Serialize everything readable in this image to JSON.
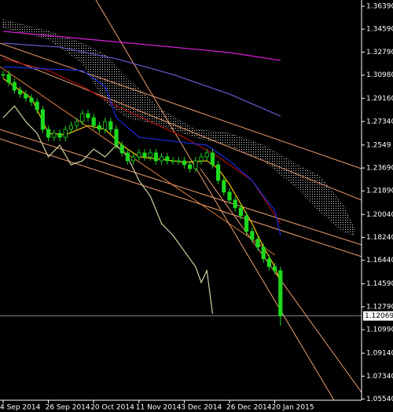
{
  "chart_data": {
    "type": "candlestick",
    "categories": [
      "4 Sep 2014",
      null,
      null,
      null,
      null,
      null,
      null,
      null,
      "26 Sep 2014",
      null,
      null,
      null,
      null,
      null,
      null,
      null,
      "20 Oct 2014",
      null,
      null,
      null,
      null,
      null,
      null,
      null,
      "11 Nov 2014",
      null,
      null,
      null,
      null,
      null,
      null,
      null,
      "3 Dec 2014",
      null,
      null,
      null,
      null,
      null,
      null,
      null,
      "26 Dec 2014",
      null,
      null,
      null,
      null,
      null,
      null,
      null,
      "20 Jan 2015",
      null
    ],
    "close": [
      1.3103,
      1.3041,
      1.298,
      1.2949,
      1.2918,
      1.2887,
      1.2826,
      1.2672,
      1.261,
      1.2641,
      1.261,
      1.2672,
      1.2702,
      1.2733,
      1.2795,
      1.2764,
      1.2702,
      1.2672,
      1.2733,
      1.2672,
      1.2548,
      1.2487,
      1.2425,
      1.2456,
      1.2487,
      1.2456,
      1.2487,
      1.2425,
      1.2456,
      1.2425,
      1.2425,
      1.2425,
      1.2394,
      1.2364,
      1.2425,
      1.2456,
      1.2487,
      1.2394,
      1.2271,
      1.2179,
      1.2117,
      1.2056,
      1.1994,
      1.1871,
      1.1809,
      1.1748,
      1.1655,
      1.1594,
      1.1563,
      1.1207
    ],
    "high": [
      1.3133,
      1.3133,
      1.3071,
      1.301,
      1.2979,
      1.2948,
      1.2917,
      1.2856,
      1.2702,
      1.2671,
      1.2671,
      1.2702,
      1.2732,
      1.2763,
      1.2825,
      1.2825,
      1.2794,
      1.2732,
      1.2763,
      1.2763,
      1.2702,
      1.2578,
      1.2517,
      1.2486,
      1.2517,
      1.2517,
      1.2517,
      1.2517,
      1.2486,
      1.2486,
      1.2455,
      1.2455,
      1.2455,
      1.2424,
      1.2455,
      1.2486,
      1.2517,
      1.2517,
      1.2424,
      1.2301,
      1.2209,
      1.2147,
      1.2086,
      1.2024,
      1.1901,
      1.1839,
      1.1778,
      1.1685,
      1.1624,
      1.1593
    ],
    "low": [
      1.3073,
      1.3011,
      1.295,
      1.2919,
      1.2888,
      1.2857,
      1.2796,
      1.2642,
      1.258,
      1.258,
      1.258,
      1.258,
      1.2642,
      1.2672,
      1.2703,
      1.2734,
      1.2672,
      1.2642,
      1.2642,
      1.2642,
      1.2518,
      1.2457,
      1.2395,
      1.2395,
      1.2426,
      1.2426,
      1.2426,
      1.2395,
      1.2395,
      1.2395,
      1.2395,
      1.2395,
      1.2364,
      1.2334,
      1.2334,
      1.2395,
      1.2426,
      1.2364,
      1.2241,
      1.2149,
      1.2087,
      1.2026,
      1.1964,
      1.1841,
      1.1779,
      1.1718,
      1.1625,
      1.1564,
      1.1533,
      1.113
    ],
    "candle_color": "#1ed81e",
    "cloud": {
      "color": "#d8d8d8",
      "upper": {
        "x": [
          0,
          8,
          14,
          18,
          22,
          28,
          34,
          40,
          46,
          52,
          56,
          60,
          62
        ],
        "values": [
          1.3534,
          1.3442,
          1.3349,
          1.3257,
          1.3072,
          1.2826,
          1.2672,
          1.2641,
          1.2548,
          1.2394,
          1.2302,
          1.2086,
          1.1902
        ]
      },
      "lower": {
        "x": [
          0,
          8,
          14,
          18,
          22,
          28,
          34,
          40,
          46,
          52,
          56,
          60,
          62
        ],
        "values": [
          1.3472,
          1.338,
          1.3195,
          1.2887,
          1.2764,
          1.2702,
          1.261,
          1.2548,
          1.2425,
          1.221,
          1.2025,
          1.1871,
          1.184
        ]
      }
    },
    "lines": [
      {
        "color": "#e01ee0",
        "x": [
          0,
          15,
          30,
          40,
          49
        ],
        "values": [
          1.3442,
          1.338,
          1.3318,
          1.3275,
          1.3214
        ]
      },
      {
        "color": "#6a5acd",
        "x": [
          0,
          10,
          20,
          30,
          40,
          49
        ],
        "values": [
          1.3349,
          1.3318,
          1.3226,
          1.3103,
          1.2949,
          1.2776
        ]
      },
      {
        "color": "#b01010",
        "x": [
          0,
          8,
          14,
          20,
          26,
          32,
          38,
          44,
          49
        ],
        "values": [
          1.3226,
          1.3134,
          1.301,
          1.2856,
          1.2733,
          1.261,
          1.2456,
          1.2271,
          1.1932
        ]
      },
      {
        "color": "#1a2ee0",
        "x": [
          0,
          8,
          14,
          18,
          20,
          24,
          30,
          36,
          40,
          44,
          46,
          48,
          49
        ],
        "values": [
          1.3164,
          1.3146,
          1.3134,
          1.301,
          1.2764,
          1.261,
          1.2579,
          1.2548,
          1.2425,
          1.2271,
          1.2148,
          1.2037,
          1.184
        ]
      },
      {
        "color": "#d0d0a0",
        "x": [
          0,
          2,
          4,
          6,
          8,
          10,
          12,
          14,
          16,
          18,
          20,
          22,
          24,
          26,
          28,
          30,
          32,
          34,
          35,
          36,
          37
        ],
        "values": [
          1.2764,
          1.2856,
          1.2733,
          1.2641,
          1.2456,
          1.2548,
          1.2394,
          1.2425,
          1.2518,
          1.2456,
          1.2548,
          1.2456,
          1.2271,
          1.2148,
          1.1932,
          1.184,
          1.1717,
          1.1594,
          1.147,
          1.1563,
          1.1224
        ]
      },
      {
        "color": "#f5c400",
        "x": [
          0,
          5,
          8,
          11,
          15,
          18,
          21,
          24,
          28,
          32,
          36,
          38,
          40,
          42,
          44,
          46,
          48,
          49
        ],
        "values": [
          1.3072,
          1.2918,
          1.2641,
          1.2629,
          1.2702,
          1.2672,
          1.2548,
          1.2456,
          1.2437,
          1.2413,
          1.2425,
          1.2364,
          1.224,
          1.2086,
          1.1932,
          1.1748,
          1.1594,
          1.147
        ]
      }
    ],
    "ylim": [
      1.0545,
      1.3688
    ],
    "yticks": [
      {
        "value": 1.3639,
        "label": "1.36390"
      },
      {
        "value": 1.3459,
        "label": "1.34590"
      },
      {
        "value": 1.3279,
        "label": "1.32790"
      },
      {
        "value": 1.3098,
        "label": "1.30980"
      },
      {
        "value": 1.2916,
        "label": "1.29160"
      },
      {
        "value": 1.2734,
        "label": "1.27340"
      },
      1.2549,
      {
        "value": 1.2369,
        "label": "1.23690"
      },
      {
        "value": 1.2189,
        "label": "1.21890"
      },
      {
        "value": 1.2004,
        "label": "1.20040"
      },
      {
        "value": 1.1824,
        "label": "1.18240"
      },
      {
        "value": 1.1644,
        "label": "1.16440"
      },
      {
        "value": 1.1459,
        "label": "1.14590"
      },
      {
        "value": 1.1279,
        "label": "1.12790"
      },
      {
        "value": 1.1099,
        "label": "1.10990"
      },
      {
        "value": 1.0914,
        "label": "1.09140"
      },
      {
        "value": 1.0734,
        "label": "1.07340"
      },
      {
        "value": 1.0554,
        "label": "1.05540"
      }
    ],
    "current_price": 1.12069
  }
}
